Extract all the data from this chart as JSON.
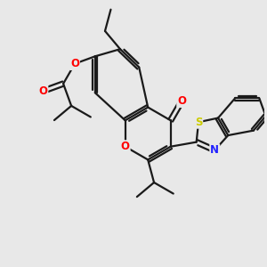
{
  "bg_color": "#e8e8e8",
  "bond_color": "#1a1a1a",
  "bond_width": 1.6,
  "dbo": 0.09,
  "atom_colors": {
    "O": "#ff0000",
    "N": "#2222ff",
    "S": "#cccc00",
    "C": "#1a1a1a"
  },
  "font_size": 8.5,
  "fig_size": [
    3.0,
    3.0
  ],
  "dpi": 100
}
